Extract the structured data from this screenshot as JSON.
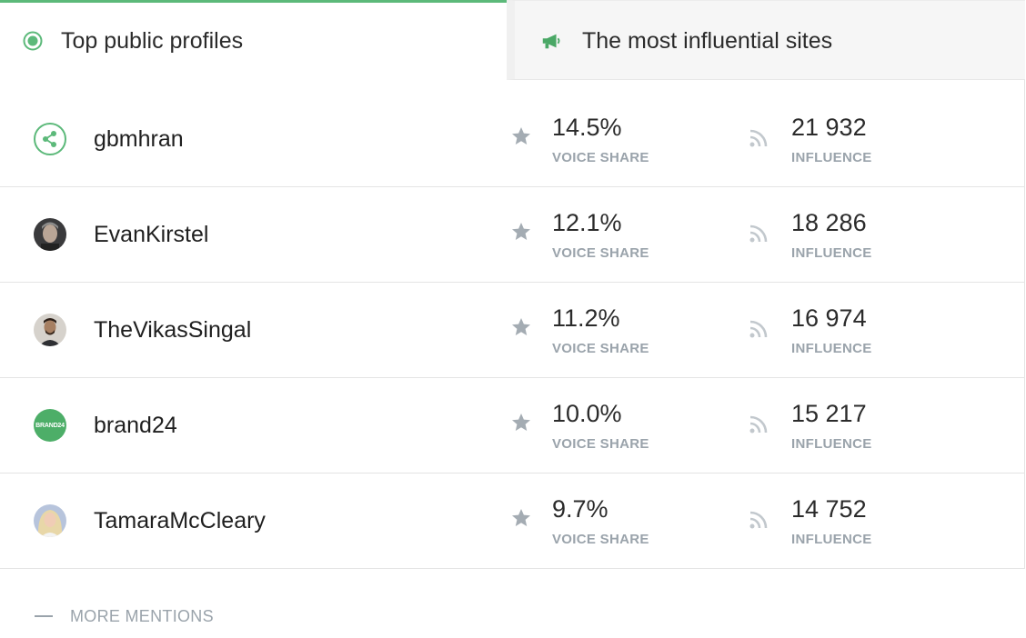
{
  "tabs": {
    "active": {
      "label": "Top public profiles",
      "icon": "target-icon"
    },
    "inactive": {
      "label": "The most influential sites",
      "icon": "megaphone-icon"
    }
  },
  "colors": {
    "accent": "#5cb97a",
    "muted": "#9aa3ab",
    "brand24": "#4dae68"
  },
  "metric_labels": {
    "voice_share": "VOICE SHARE",
    "influence": "INFLUENCE"
  },
  "profiles": [
    {
      "name": "gbmhran",
      "avatar": "share-icon",
      "voice_share": "14.5%",
      "influence": "21 932"
    },
    {
      "name": "EvanKirstel",
      "avatar": "photo",
      "voice_share": "12.1%",
      "influence": "18 286"
    },
    {
      "name": "TheVikasSingal",
      "avatar": "photo",
      "voice_share": "11.2%",
      "influence": "16 974"
    },
    {
      "name": "brand24",
      "avatar": "brand24-logo",
      "avatar_text": "BRAND24",
      "voice_share": "10.0%",
      "influence": "15 217"
    },
    {
      "name": "TamaraMcCleary",
      "avatar": "photo",
      "voice_share": "9.7%",
      "influence": "14 752"
    }
  ],
  "more_mentions": {
    "label": "MORE MENTIONS"
  }
}
